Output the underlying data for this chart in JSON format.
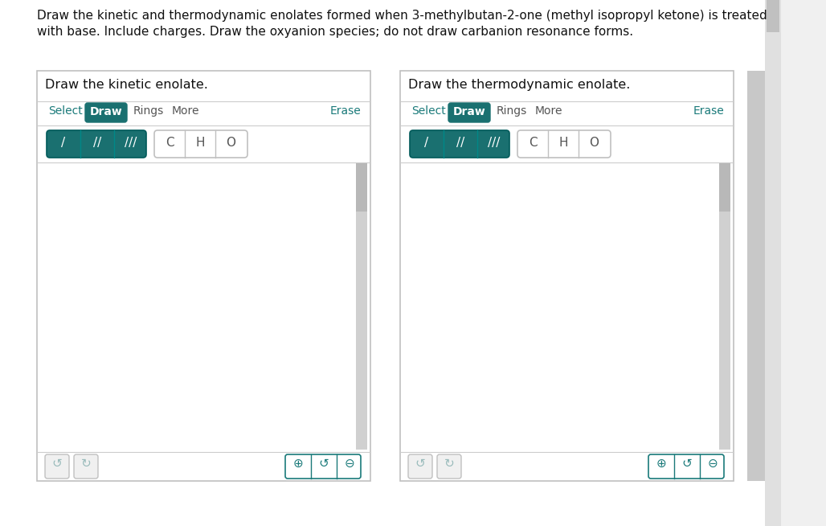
{
  "bg_color": "#ffffff",
  "outer_bg": "#e8e8e8",
  "text_color": "#1a1a1a",
  "teal_color": "#1a7a7a",
  "teal_btn": "#1a7070",
  "border_color": "#b0b0b0",
  "scrollbar_track": "#d0d0d0",
  "scrollbar_thumb": "#b8b8b8",
  "panel1_title": "Draw the kinetic enolate.",
  "panel2_title": "Draw the thermodynamic enolate.",
  "instruction_line1": "Draw the kinetic and thermodynamic enolates formed when 3-methylbutan-2-one (methyl isopropyl ketone) is treated",
  "instruction_line2": "with base. Include charges. Draw the oxyanion species; do not draw carbanion resonance forms.",
  "bond_syms": [
    "/",
    "//",
    "///"
  ],
  "atom_syms": [
    "C",
    "H",
    "O"
  ],
  "main_bg": "#f0f0f0"
}
